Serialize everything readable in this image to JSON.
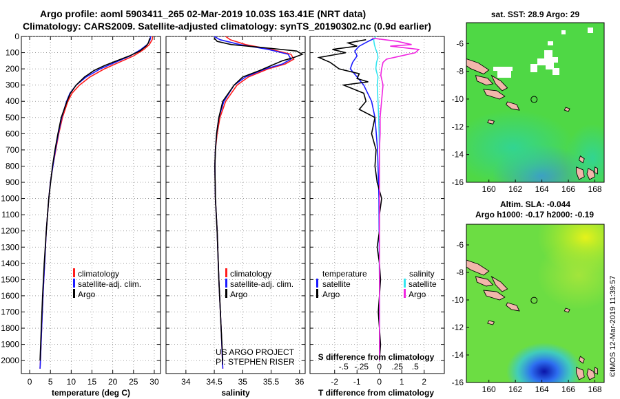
{
  "header": {
    "line1": "Argo profile: aoml 5903411_265 02-Mar-2019 10.03S 163.41E (NRT data)",
    "line2": "Climatology: CARS2009. Satellite-adjusted climatology: synTS_20190302.nc (0.9d earlier)"
  },
  "colors": {
    "climatology": "#ff1a1a",
    "satellite": "#1a1aff",
    "argo": "#000000",
    "t_satellite": "#1a1aff",
    "s_satellite": "#33e6f0",
    "s_argo": "#f025e0"
  },
  "credits": {
    "project": "US ARGO PROJECT",
    "pi": "PI: STEPHEN RISER",
    "imos": "©IMOS 12-Mar-2019 11:39:57"
  },
  "chart_data": [
    {
      "type": "line",
      "name": "temperature",
      "xlabel": "temperature (deg C)",
      "ylabel": "depth",
      "xlim": [
        -2,
        31.5
      ],
      "ylim": [
        2080,
        0
      ],
      "xticks": [
        0,
        5,
        10,
        15,
        20,
        25,
        30
      ],
      "yticks": [
        0,
        100,
        200,
        300,
        400,
        500,
        600,
        700,
        800,
        900,
        1000,
        1100,
        1200,
        1300,
        1400,
        1500,
        1600,
        1700,
        1800,
        1900,
        2000
      ],
      "legend": [
        "climatology",
        "satellite-adj. clim.",
        "Argo"
      ],
      "series": [
        {
          "name": "climatology",
          "color": "red",
          "depth": [
            0,
            20,
            50,
            80,
            120,
            160,
            200,
            250,
            300,
            350,
            400,
            500,
            600,
            700,
            800,
            900,
            1000,
            1200,
            1400,
            1600,
            1800,
            2000,
            2050
          ],
          "values": [
            29.6,
            29.5,
            28.8,
            27.5,
            25.0,
            21.5,
            18.0,
            14.5,
            12.0,
            10.2,
            9.2,
            7.9,
            7.0,
            6.3,
            5.6,
            5.0,
            4.6,
            4.0,
            3.6,
            3.2,
            2.9,
            2.6,
            2.5
          ]
        },
        {
          "name": "satellite-adj. clim.",
          "color": "blue",
          "depth": [
            0,
            20,
            50,
            80,
            120,
            160,
            200,
            250,
            300,
            350,
            400,
            500,
            600,
            700,
            800,
            900,
            1000,
            1200,
            1400,
            1600,
            1800,
            2000,
            2050
          ],
          "values": [
            29.1,
            29.0,
            28.3,
            26.8,
            24.2,
            20.6,
            17.0,
            13.6,
            11.2,
            9.7,
            8.9,
            7.7,
            6.9,
            6.2,
            5.6,
            5.0,
            4.6,
            4.0,
            3.6,
            3.2,
            2.9,
            2.6,
            2.5
          ]
        },
        {
          "name": "Argo",
          "color": "black",
          "depth": [
            10,
            20,
            40,
            60,
            90,
            120,
            150,
            180,
            210,
            250,
            300,
            350,
            400,
            500,
            600,
            700,
            800,
            1000,
            1200,
            1400,
            1600,
            1800,
            2000
          ],
          "values": [
            29.0,
            28.8,
            28.6,
            28.0,
            26.5,
            24.0,
            21.0,
            18.0,
            15.5,
            13.2,
            11.2,
            9.8,
            9.0,
            7.6,
            6.8,
            6.1,
            5.5,
            4.6,
            4.0,
            3.5,
            3.1,
            2.8,
            2.5
          ]
        }
      ]
    },
    {
      "type": "line",
      "name": "salinity",
      "xlabel": "salinity",
      "ylabel": "depth",
      "xlim": [
        33.65,
        36.1
      ],
      "ylim": [
        2080,
        0
      ],
      "xticks": [
        34,
        34.5,
        35,
        35.5,
        36
      ],
      "legend": [
        "climatology",
        "satellite-adj. clim.",
        "Argo"
      ],
      "series": [
        {
          "name": "climatology",
          "color": "red",
          "depth": [
            0,
            20,
            50,
            80,
            110,
            140,
            170,
            200,
            250,
            300,
            400,
            500,
            600,
            700,
            800,
            1000,
            1200,
            1500,
            1800,
            2050
          ],
          "values": [
            34.7,
            34.78,
            35.05,
            35.5,
            35.85,
            35.9,
            35.75,
            35.45,
            35.1,
            34.9,
            34.7,
            34.6,
            34.55,
            34.52,
            34.51,
            34.52,
            34.55,
            34.58,
            34.62,
            34.65
          ]
        },
        {
          "name": "satellite-adj. clim.",
          "color": "blue",
          "depth": [
            0,
            20,
            50,
            80,
            110,
            140,
            170,
            200,
            250,
            300,
            400,
            500,
            600,
            700,
            800,
            1000,
            1200,
            1500,
            1800,
            2050
          ],
          "values": [
            34.5,
            34.6,
            34.95,
            35.45,
            35.8,
            35.85,
            35.7,
            35.4,
            35.05,
            34.85,
            34.67,
            34.58,
            34.54,
            34.52,
            34.51,
            34.52,
            34.55,
            34.58,
            34.62,
            34.65
          ]
        },
        {
          "name": "Argo",
          "color": "black",
          "depth": [
            10,
            30,
            50,
            70,
            90,
            110,
            130,
            150,
            180,
            210,
            250,
            300,
            400,
            500,
            600,
            700,
            800,
            1000,
            1200,
            1500,
            1800,
            2000
          ],
          "values": [
            34.5,
            34.55,
            34.8,
            35.4,
            35.95,
            36.05,
            35.9,
            35.7,
            35.5,
            35.3,
            35.0,
            34.85,
            34.65,
            34.58,
            34.54,
            34.52,
            34.51,
            34.52,
            34.55,
            34.58,
            34.62,
            34.65
          ]
        }
      ]
    },
    {
      "type": "line",
      "name": "difference from climatology",
      "xlabel": "T difference from climatology",
      "x2label": "S difference from climatology",
      "xlim": [
        -3.1,
        2.9
      ],
      "ylim": [
        2080,
        0
      ],
      "xticks": [
        -2,
        -1,
        0,
        1,
        2
      ],
      "x2ticks": [
        -0.5,
        -0.25,
        0,
        0.25,
        0.5
      ],
      "legend_left": [
        "temperature",
        "satellite",
        "Argo"
      ],
      "legend_right": [
        "salinity",
        "satellite",
        "Argo"
      ],
      "series": [
        {
          "name": "T satellite",
          "axis": "T",
          "color": "blue",
          "depth": [
            10,
            30,
            60,
            90,
            120,
            160,
            200,
            250,
            300,
            400,
            500,
            700,
            1000,
            1500,
            2000
          ],
          "values": [
            -0.2,
            -0.5,
            -0.9,
            -1.1,
            -1.0,
            -1.2,
            -1.3,
            -1.0,
            -0.7,
            -0.35,
            -0.2,
            -0.08,
            -0.02,
            0.0,
            0.0
          ]
        },
        {
          "name": "T Argo",
          "axis": "T",
          "color": "black",
          "depth": [
            20,
            40,
            60,
            80,
            100,
            130,
            160,
            200,
            230,
            260,
            280,
            300,
            350,
            400,
            450,
            500,
            600,
            700,
            800,
            900,
            1000,
            1100,
            1200,
            1300,
            1400,
            1500,
            1600,
            1700,
            1800,
            1900,
            2000
          ],
          "values": [
            -0.6,
            -1.4,
            -1.0,
            -2.1,
            -1.5,
            -2.7,
            -2.2,
            -1.8,
            -0.9,
            -1.0,
            -0.5,
            -1.6,
            -0.7,
            -0.6,
            -0.9,
            -0.2,
            -0.35,
            -0.15,
            -0.2,
            -0.1,
            0.1,
            0.0,
            0.0,
            -0.1,
            0.0,
            0.05,
            0.0,
            -0.05,
            0.0,
            0.05,
            0.0
          ]
        },
        {
          "name": "S satellite",
          "axis": "S",
          "color": "cyan",
          "depth": [
            0,
            20,
            50,
            80,
            100,
            130,
            160,
            200,
            250,
            300,
            400,
            500,
            700,
            1000,
            1500,
            2000
          ],
          "values": [
            -0.05,
            -0.08,
            -0.07,
            -0.05,
            -0.03,
            -0.02,
            -0.04,
            -0.05,
            -0.02,
            -0.03,
            -0.02,
            -0.01,
            0.0,
            0.0,
            0.0,
            0.0
          ]
        },
        {
          "name": "S Argo",
          "axis": "S",
          "color": "magenta",
          "depth": [
            10,
            30,
            50,
            60,
            80,
            100,
            120,
            140,
            160,
            200,
            240,
            300,
            350,
            400,
            450,
            500,
            600,
            700,
            800,
            1000,
            1200,
            1500,
            2000
          ],
          "values": [
            -0.1,
            0.25,
            0.45,
            0.15,
            0.55,
            0.5,
            0.3,
            0.1,
            0.05,
            0.03,
            0.02,
            0.05,
            0.04,
            0.03,
            0.02,
            0.01,
            0.01,
            0.0,
            0.0,
            0.0,
            0.0,
            0.0,
            0.0
          ]
        }
      ]
    },
    {
      "type": "heatmap",
      "name": "sst map",
      "title": "sat. SST: 28.9 Argo: 29",
      "xlim": [
        158.3,
        168.7
      ],
      "ylim": [
        -16,
        -4.5
      ],
      "xticks": [
        160,
        162,
        164,
        166,
        168
      ],
      "yticks": [
        -6,
        -8,
        -10,
        -12,
        -14,
        -16
      ],
      "marker": {
        "lon": 163.41,
        "lat": -10.03
      }
    },
    {
      "type": "heatmap",
      "name": "sla map",
      "title": "Altim. SLA: -0.044",
      "subtitle": "Argo h1000: -0.17 h2000: -0.19",
      "xlim": [
        158.3,
        168.7
      ],
      "ylim": [
        -16,
        -4.5
      ],
      "xticks": [
        160,
        162,
        164,
        166,
        168
      ],
      "yticks": [
        -6,
        -8,
        -10,
        -12,
        -14,
        -16
      ],
      "marker": {
        "lon": 163.41,
        "lat": -10.03
      }
    }
  ]
}
